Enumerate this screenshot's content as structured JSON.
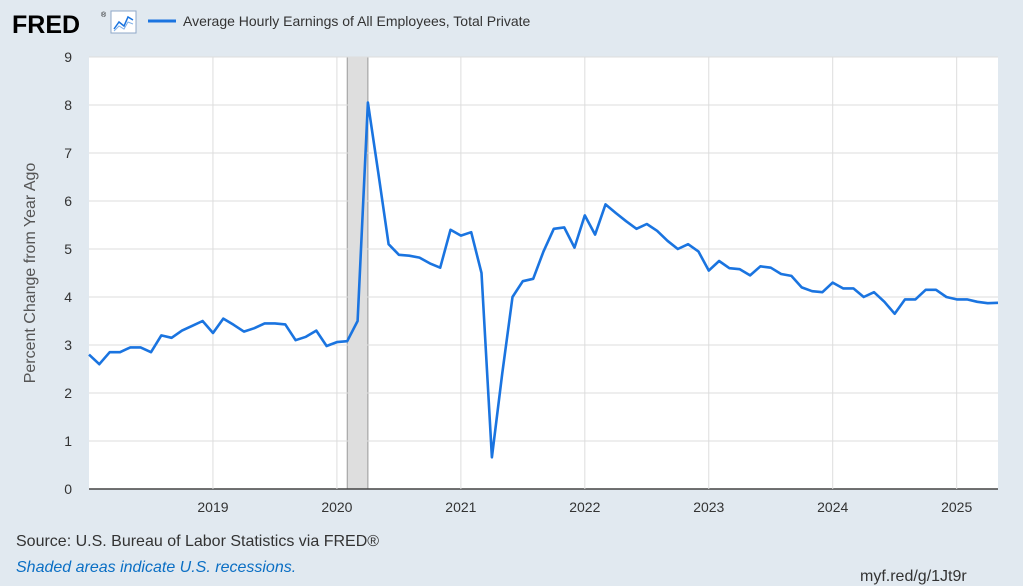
{
  "header": {
    "logo": "FRED",
    "logo_icon": "line-chart-icon",
    "legend_label": "Average Hourly Earnings of All Employees, Total Private"
  },
  "footer": {
    "source": "Source: U.S. Bureau of Labor Statistics via FRED®",
    "note": "Shaded areas indicate U.S. recessions.",
    "url": "myf.red/g/1Jt9r"
  },
  "chart_data": {
    "type": "line",
    "title": "",
    "xlabel": "",
    "ylabel": "Percent Change from Year Ago",
    "xlim": [
      "2018-01",
      "2025-05"
    ],
    "ylim": [
      0,
      9
    ],
    "y_ticks": [
      0,
      1,
      2,
      3,
      4,
      5,
      6,
      7,
      8,
      9
    ],
    "x_ticks": [
      "2019",
      "2020",
      "2021",
      "2022",
      "2023",
      "2024",
      "2025"
    ],
    "grid": true,
    "legend_position": "top-left",
    "recessions": [
      {
        "start": "2020-02",
        "end": "2020-04"
      }
    ],
    "colors": {
      "line": "#1a74e0",
      "recession": "#dedede",
      "plot_bg": "#ffffff",
      "page_bg": "#e1e9f0",
      "grid": "#dddddd"
    },
    "series": [
      {
        "name": "Average Hourly Earnings of All Employees, Total Private",
        "x": [
          "2018-01",
          "2018-02",
          "2018-03",
          "2018-04",
          "2018-05",
          "2018-06",
          "2018-07",
          "2018-08",
          "2018-09",
          "2018-10",
          "2018-11",
          "2018-12",
          "2019-01",
          "2019-02",
          "2019-03",
          "2019-04",
          "2019-05",
          "2019-06",
          "2019-07",
          "2019-08",
          "2019-09",
          "2019-10",
          "2019-11",
          "2019-12",
          "2020-01",
          "2020-02",
          "2020-03",
          "2020-04",
          "2020-05",
          "2020-06",
          "2020-07",
          "2020-08",
          "2020-09",
          "2020-10",
          "2020-11",
          "2020-12",
          "2021-01",
          "2021-02",
          "2021-03",
          "2021-04",
          "2021-05",
          "2021-06",
          "2021-07",
          "2021-08",
          "2021-09",
          "2021-10",
          "2021-11",
          "2021-12",
          "2022-01",
          "2022-02",
          "2022-03",
          "2022-04",
          "2022-05",
          "2022-06",
          "2022-07",
          "2022-08",
          "2022-09",
          "2022-10",
          "2022-11",
          "2022-12",
          "2023-01",
          "2023-02",
          "2023-03",
          "2023-04",
          "2023-05",
          "2023-06",
          "2023-07",
          "2023-08",
          "2023-09",
          "2023-10",
          "2023-11",
          "2023-12",
          "2024-01",
          "2024-02",
          "2024-03",
          "2024-04",
          "2024-05",
          "2024-06",
          "2024-07",
          "2024-08",
          "2024-09",
          "2024-10",
          "2024-11",
          "2024-12",
          "2025-01",
          "2025-02",
          "2025-03",
          "2025-04",
          "2025-05"
        ],
        "values": [
          2.8,
          2.6,
          2.85,
          2.85,
          2.95,
          2.95,
          2.85,
          3.2,
          3.15,
          3.3,
          3.4,
          3.5,
          3.25,
          3.55,
          3.42,
          3.28,
          3.35,
          3.45,
          3.45,
          3.43,
          3.1,
          3.17,
          3.3,
          2.98,
          3.06,
          3.08,
          3.5,
          8.05,
          6.6,
          5.1,
          4.88,
          4.86,
          4.82,
          4.7,
          4.61,
          5.4,
          5.28,
          5.35,
          4.5,
          0.66,
          2.4,
          4.0,
          4.33,
          4.38,
          4.95,
          5.42,
          5.45,
          5.03,
          5.7,
          5.3,
          5.93,
          5.75,
          5.58,
          5.42,
          5.52,
          5.38,
          5.17,
          5.0,
          5.1,
          4.95,
          4.55,
          4.75,
          4.6,
          4.58,
          4.45,
          4.64,
          4.61,
          4.48,
          4.44,
          4.2,
          4.12,
          4.1,
          4.3,
          4.18,
          4.18,
          4.0,
          4.1,
          3.9,
          3.65,
          3.95,
          3.95,
          4.15,
          4.15,
          4.0,
          3.95,
          3.95,
          3.9,
          3.87,
          3.88
        ]
      }
    ]
  }
}
